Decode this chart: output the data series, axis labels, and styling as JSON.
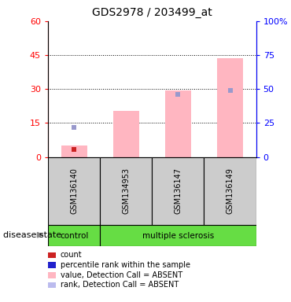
{
  "title": "GDS2978 / 203499_at",
  "samples": [
    "GSM136140",
    "GSM134953",
    "GSM136147",
    "GSM136149"
  ],
  "pink_bar_values": [
    5.0,
    20.5,
    29.5,
    43.5
  ],
  "blue_marker_values_pct": [
    22.0,
    0,
    46.0,
    49.0
  ],
  "red_marker_values": [
    3.5,
    0,
    0,
    0
  ],
  "ylim_left": [
    0,
    60
  ],
  "ylim_right": [
    0,
    100
  ],
  "yticks_left": [
    0,
    15,
    30,
    45,
    60
  ],
  "yticks_right": [
    0,
    25,
    50,
    75,
    100
  ],
  "left_tick_labels": [
    "0",
    "15",
    "30",
    "45",
    "60"
  ],
  "right_tick_labels": [
    "0",
    "25",
    "50",
    "75",
    "100%"
  ],
  "group_label": "disease state",
  "pink_color": "#FFB6C1",
  "blue_color": "#9999CC",
  "red_color": "#CC2222",
  "dark_blue_color": "#2222CC",
  "bar_width": 0.5,
  "gray_cell_color": "#CCCCCC",
  "green_cell_color": "#66DD44",
  "legend_items": [
    {
      "label": "count",
      "color": "#CC2222"
    },
    {
      "label": "percentile rank within the sample",
      "color": "#2222CC"
    },
    {
      "label": "value, Detection Call = ABSENT",
      "color": "#FFB6C1"
    },
    {
      "label": "rank, Detection Call = ABSENT",
      "color": "#BBBBEE"
    }
  ]
}
